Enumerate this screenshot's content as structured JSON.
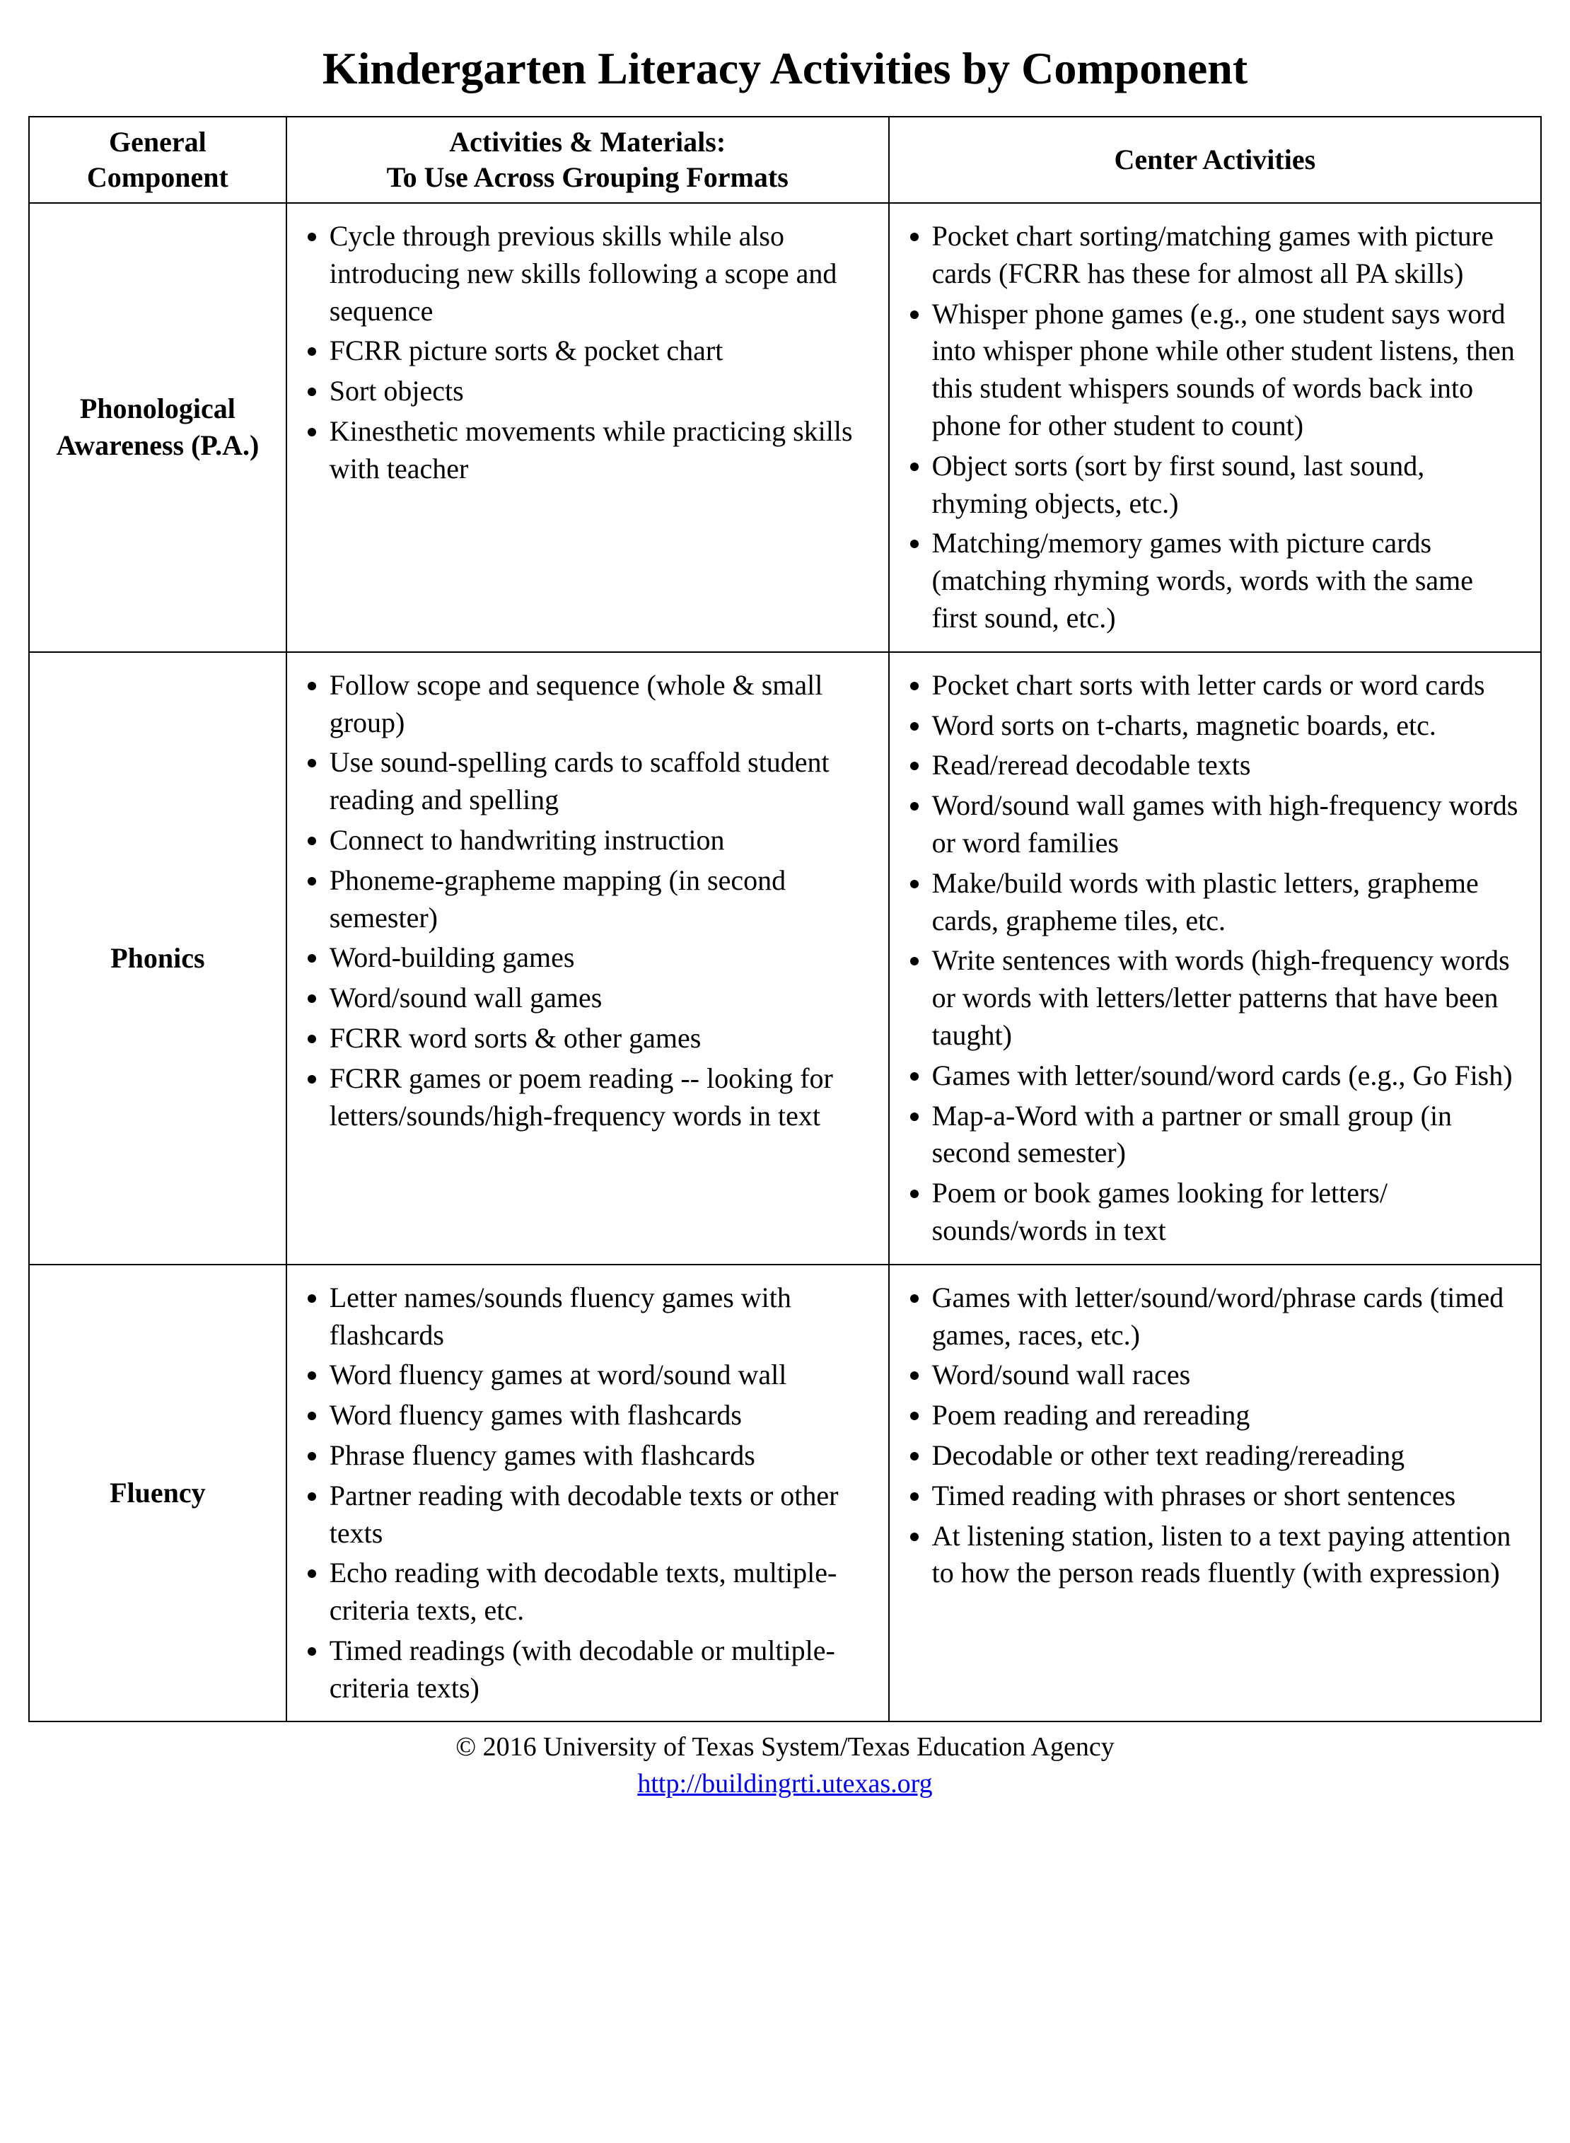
{
  "title": "Kindergarten Literacy Activities by Component",
  "headers": {
    "col1": "General Component",
    "col2_line1": "Activities & Materials:",
    "col2_line2": "To Use Across Grouping Formats",
    "col3": "Center Activities"
  },
  "rows": [
    {
      "component": "Phonological Awareness (P.A.)",
      "activities": [
        "Cycle through previous skills while also introducing new skills following a scope and sequence",
        "FCRR picture sorts & pocket chart",
        "Sort objects",
        "Kinesthetic movements while practicing skills with teacher"
      ],
      "centers": [
        "Pocket chart sorting/matching games with picture cards (FCRR has these for almost all PA skills)",
        "Whisper phone games (e.g., one student says word into whisper phone while other student listens, then this student whispers sounds of words back into phone for other student to count)",
        "Object sorts (sort by first sound, last sound, rhyming objects, etc.)",
        "Matching/memory games with picture cards (matching rhyming words, words with the same first sound, etc.)"
      ]
    },
    {
      "component": "Phonics",
      "activities": [
        "Follow scope and sequence (whole & small group)",
        "Use sound-spelling cards to scaffold student reading and spelling",
        "Connect to handwriting instruction",
        "Phoneme-grapheme mapping (in second semester)",
        "Word-building games",
        "Word/sound wall games",
        "FCRR word sorts & other games",
        "FCRR games or poem reading  -- looking for letters/sounds/high-frequency words in text"
      ],
      "centers": [
        "Pocket chart sorts with letter cards or word cards",
        "Word sorts on t-charts, magnetic boards, etc.",
        "Read/reread decodable texts",
        "Word/sound wall games with high-frequency words or word families",
        "Make/build words with plastic letters, grapheme cards, grapheme tiles, etc.",
        "Write sentences with words (high-frequency words or words with letters/letter patterns that have been taught)",
        "Games with letter/sound/word cards (e.g., Go Fish)",
        "Map-a-Word with a partner or small group (in second semester)",
        "Poem or book games looking for letters/ sounds/words in text"
      ]
    },
    {
      "component": "Fluency",
      "activities": [
        "Letter names/sounds fluency games with flashcards",
        "Word fluency games at word/sound wall",
        "Word fluency games with flashcards",
        "Phrase fluency games with flashcards",
        "Partner reading with decodable texts or other texts",
        "Echo reading with decodable texts, multiple-criteria texts, etc.",
        "Timed readings (with decodable or multiple-criteria texts)"
      ],
      "centers": [
        "Games with letter/sound/word/phrase cards (timed games, races, etc.)",
        "Word/sound wall races",
        "Poem reading and rereading",
        "Decodable or other text reading/rereading",
        "Timed reading with phrases or short sentences",
        "At listening station, listen to a text paying attention to how the person reads fluently (with expression)"
      ]
    }
  ],
  "footer": {
    "copyright": "© 2016 University of Texas System/Texas Education Agency",
    "url": "http://buildingrti.utexas.org"
  }
}
